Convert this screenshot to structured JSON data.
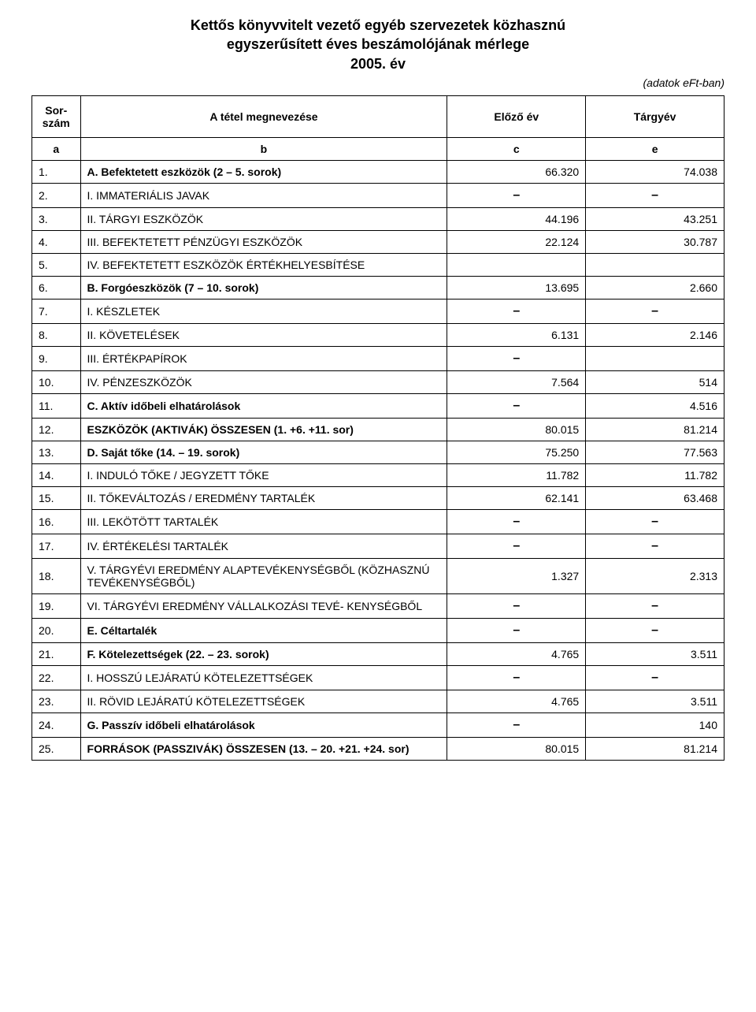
{
  "title_lines": [
    "Kettős könyvvitelt vezető egyéb szervezetek közhasznú",
    "egyszerűsített éves beszámolójának mérlege",
    "2005. év"
  ],
  "subtitle": "(adatok eFt-ban)",
  "headers": {
    "sor": "Sor-\nszám",
    "megnev": "A tétel megnevezése",
    "elozo": "Előző év",
    "targy": "Tárgyév"
  },
  "letter_row": [
    "a",
    "b",
    "c",
    "e"
  ],
  "rows": [
    {
      "n": "1.",
      "label": "A.  Befektetett eszközök (2 – 5. sorok)",
      "c": "66.320",
      "e": "74.038",
      "bold": true
    },
    {
      "n": "2.",
      "label": "I.   IMMATERIÁLIS JAVAK",
      "c": "–",
      "e": "–"
    },
    {
      "n": "3.",
      "label": "II.  TÁRGYI ESZKÖZÖK",
      "c": "44.196",
      "e": "43.251"
    },
    {
      "n": "4.",
      "label": "III. BEFEKTETETT PÉNZÜGYI ESZKÖZÖK",
      "c": "22.124",
      "e": "30.787"
    },
    {
      "n": "5.",
      "label": "IV. BEFEKTETETT ESZKÖZÖK ÉRTÉKHELYESBÍTÉSE",
      "c": "",
      "e": ""
    },
    {
      "n": "6.",
      "label": "B.  Forgóeszközök (7 – 10. sorok)",
      "c": "13.695",
      "e": "2.660",
      "bold": true
    },
    {
      "n": "7.",
      "label": "I.   KÉSZLETEK",
      "c": "–",
      "e": "–"
    },
    {
      "n": "8.",
      "label": "II.  KÖVETELÉSEK",
      "c": "6.131",
      "e": "2.146"
    },
    {
      "n": "9.",
      "label": "III. ÉRTÉKPAPÍROK",
      "c": "–",
      "e": ""
    },
    {
      "n": "10.",
      "label": "IV. PÉNZESZKÖZÖK",
      "c": "7.564",
      "e": "514"
    },
    {
      "n": "11.",
      "label": "C.  Aktív időbeli elhatárolások",
      "c": "–",
      "e": "4.516",
      "bold": true
    },
    {
      "n": "12.",
      "label": "ESZKÖZÖK (AKTIVÁK) ÖSSZESEN (1. +6. +11. sor)",
      "c": "80.015",
      "e": "81.214",
      "bold": true
    },
    {
      "n": "13.",
      "label": "D.  Saját tőke (14. – 19. sorok)",
      "c": "75.250",
      "e": "77.563",
      "bold": true
    },
    {
      "n": "14.",
      "label": "  I.   INDULÓ TŐKE / JEGYZETT TŐKE",
      "c": "11.782",
      "e": "11.782"
    },
    {
      "n": "15.",
      "label": "II.  TŐKEVÁLTOZÁS / EREDMÉNY TARTALÉK",
      "c": "62.141",
      "e": "63.468"
    },
    {
      "n": "16.",
      "label": "III. LEKÖTÖTT TARTALÉK",
      "c": "–",
      "e": "–"
    },
    {
      "n": "17.",
      "label": "IV. ÉRTÉKELÉSI TARTALÉK",
      "c": "–",
      "e": "–"
    },
    {
      "n": "18.",
      "label": "V.  TÁRGYÉVI EREDMÉNY ALAPTEVÉKENYSÉGBŐL (KÖZHASZNÚ TEVÉKENYSÉGBŐL)",
      "c": "1.327",
      "e": "2.313"
    },
    {
      "n": "19.",
      "label": "VI. TÁRGYÉVI EREDMÉNY VÁLLALKOZÁSI TEVÉ- KENYSÉGBŐL",
      "c": "–",
      "e": "–"
    },
    {
      "n": "20.",
      "label": "E.  Céltartalék",
      "c": "–",
      "e": "–",
      "bold": true
    },
    {
      "n": "21.",
      "label": "F.  Kötelezettségek (22. – 23. sorok)",
      "c": "4.765",
      "e": "3.511",
      "bold": true
    },
    {
      "n": "22.",
      "label": "I.   HOSSZÚ LEJÁRATÚ KÖTELEZETTSÉGEK",
      "c": "–",
      "e": "–"
    },
    {
      "n": "23.",
      "label": "II.  RÖVID LEJÁRATÚ KÖTELEZETTSÉGEK",
      "c": "4.765",
      "e": "3.511"
    },
    {
      "n": "24.",
      "label": "G.  Passzív időbeli elhatárolások",
      "c": "–",
      "e": "140",
      "bold": true
    },
    {
      "n": "25.",
      "label": "FORRÁSOK (PASSZIVÁK) ÖSSZESEN (13. – 20. +21. +24. sor)",
      "c": "80.015",
      "e": "81.214",
      "bold": true
    }
  ]
}
